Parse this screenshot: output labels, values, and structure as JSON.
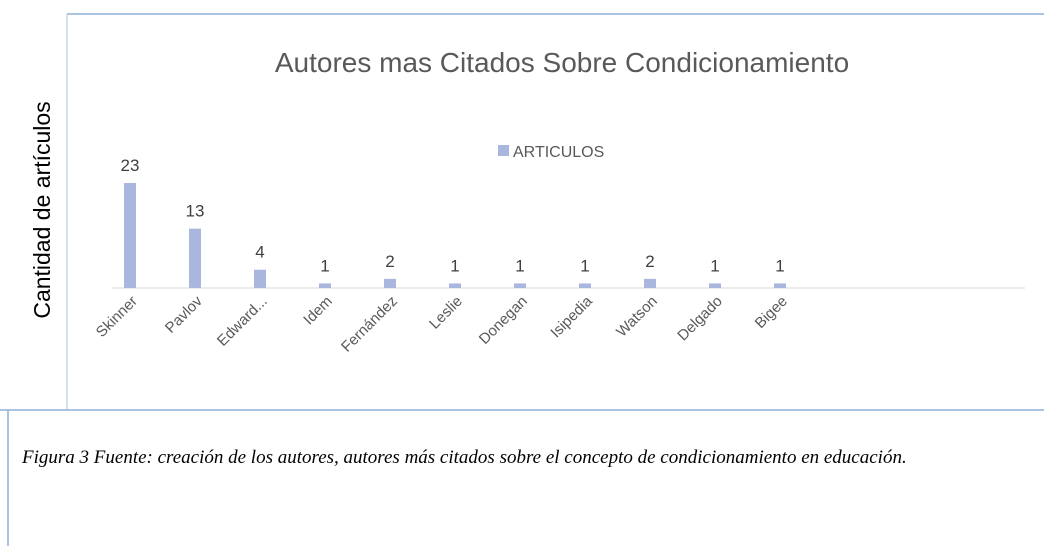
{
  "chart_data": {
    "type": "bar",
    "title": "Autores mas Citados Sobre Condicionamiento",
    "ylabel": "Cantidad de artículos",
    "categories": [
      "Skinner",
      "Pavlov",
      "Edward...",
      "Idem",
      "Fernández",
      "Leslie",
      "Donegan",
      "Isipedia",
      "Watson",
      "Delgado",
      "Bigee"
    ],
    "series": [
      {
        "name": "ARTICULOS",
        "color": "#a9b6dd",
        "values": [
          23,
          13,
          4,
          1,
          2,
          1,
          1,
          1,
          2,
          1,
          1
        ]
      }
    ],
    "legend": "top",
    "data_labels": true
  },
  "caption": "Figura 3 Fuente: creación de los autores, autores más citados sobre  el concepto de condicionamiento en educación."
}
